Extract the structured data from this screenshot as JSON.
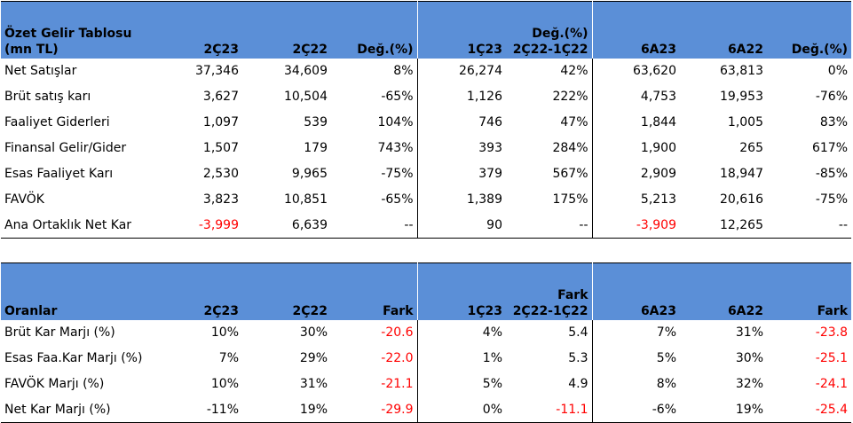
{
  "income": {
    "header": {
      "title_line1": "Özet Gelir Tablosu",
      "title_line2": "(mn TL)",
      "cols": [
        "2Ç23",
        "2Ç22",
        "Değ.(%)",
        "1Ç23",
        "Değ.(%)",
        "6A23",
        "6A22",
        "Değ.(%)"
      ],
      "col5_sub": "2Ç22-1Ç22"
    },
    "rows": [
      {
        "label": "Net Satışlar",
        "v": [
          "37,346",
          "34,609",
          "8%",
          "26,274",
          "42%",
          "63,620",
          "63,813",
          "0%"
        ]
      },
      {
        "label": "Brüt satış karı",
        "v": [
          "3,627",
          "10,504",
          "-65%",
          "1,126",
          "222%",
          "4,753",
          "19,953",
          "-76%"
        ]
      },
      {
        "label": "Faaliyet Giderleri",
        "v": [
          "1,097",
          "539",
          "104%",
          "746",
          "47%",
          "1,844",
          "1,005",
          "83%"
        ]
      },
      {
        "label": "Finansal Gelir/Gider",
        "v": [
          "1,507",
          "179",
          "743%",
          "393",
          "284%",
          "1,900",
          "265",
          "617%"
        ]
      },
      {
        "label": "Esas Faaliyet Karı",
        "v": [
          "2,530",
          "9,965",
          "-75%",
          "379",
          "567%",
          "2,909",
          "18,947",
          "-85%"
        ]
      },
      {
        "label": "FAVÖK",
        "v": [
          "3,823",
          "10,851",
          "-65%",
          "1,389",
          "175%",
          "5,213",
          "20,616",
          "-75%"
        ]
      },
      {
        "label": "Ana Ortaklık Net Kar",
        "v": [
          "-3,999",
          "6,639",
          "--",
          "90",
          "--",
          "-3,909",
          "12,265",
          "--"
        ],
        "neg": [
          true,
          false,
          false,
          false,
          false,
          true,
          false,
          false
        ]
      }
    ]
  },
  "ratios": {
    "header": {
      "title": "Oranlar",
      "cols": [
        "2Ç23",
        "2Ç22",
        "Fark",
        "1Ç23",
        "Fark",
        "6A23",
        "6A22",
        "Fark"
      ],
      "col5_sub": "2Ç22-1Ç22"
    },
    "rows": [
      {
        "label": "Brüt Kar Marjı (%)",
        "v": [
          "10%",
          "30%",
          "-20.6",
          "4%",
          "5.4",
          "7%",
          "31%",
          "-23.8"
        ],
        "neg": [
          false,
          false,
          true,
          false,
          false,
          false,
          false,
          true
        ]
      },
      {
        "label": "Esas Faa.Kar Marjı (%)",
        "v": [
          "7%",
          "29%",
          "-22.0",
          "1%",
          "5.3",
          "5%",
          "30%",
          "-25.1"
        ],
        "neg": [
          false,
          false,
          true,
          false,
          false,
          false,
          false,
          true
        ]
      },
      {
        "label": "FAVÖK Marjı (%)",
        "v": [
          "10%",
          "31%",
          "-21.1",
          "5%",
          "4.9",
          "8%",
          "32%",
          "-24.1"
        ],
        "neg": [
          false,
          false,
          true,
          false,
          false,
          false,
          false,
          true
        ]
      },
      {
        "label": "Net Kar Marjı (%)",
        "v": [
          "-11%",
          "19%",
          "-29.9",
          "0%",
          "-11.1",
          "-6%",
          "19%",
          "-25.4"
        ],
        "neg": [
          false,
          false,
          true,
          false,
          true,
          false,
          false,
          true
        ]
      }
    ]
  },
  "colors": {
    "header_bg": "#5b8fd7",
    "negative": "#ff0000"
  }
}
